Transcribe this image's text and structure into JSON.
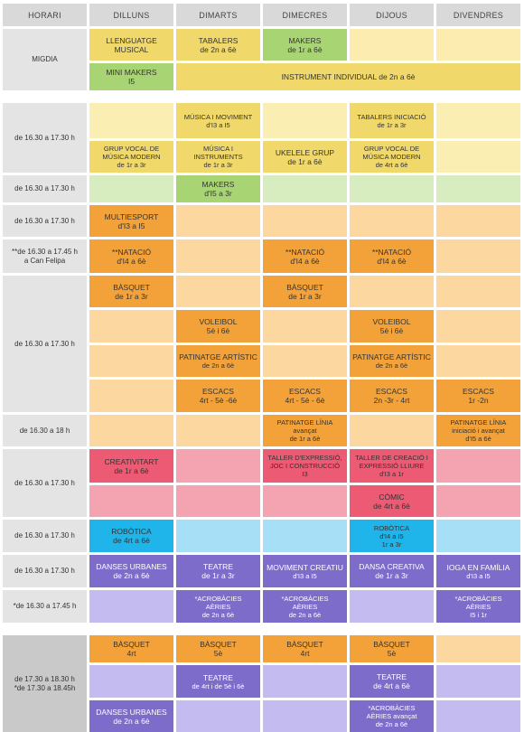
{
  "colors": {
    "header_bg": "#d9d9d9",
    "time_bg": "#e4e4e4",
    "midday_pale": "#fdecb0",
    "yellow": "#f0d96a",
    "yellow_pale": "#fbeeb3",
    "green": "#a9d474",
    "green_pale": "#d7ecbf",
    "orange": "#f3a23a",
    "orange_pale": "#fcd7a0",
    "red": "#ec5a73",
    "pink_pale": "#f4a3b1",
    "blue": "#1fb4ea",
    "blue_pale": "#a7dff7",
    "purple": "#7d6cc9",
    "lavender": "#c4bbf0"
  },
  "headers": [
    "HORARI",
    "DILLUNS",
    "DIMARTS",
    "DIMECRES",
    "DIJOUS",
    "DIVENDRES"
  ],
  "times": {
    "migdia": "MIGDIA",
    "t1a": "de 16.30 a 17.30 h",
    "t1b": "de 16.30 a 17.30 h",
    "t1c": "de 16.30 a 17.30 h",
    "t1d": [
      "**de 16.30 a 17.45 h",
      "a Can Felipa"
    ],
    "t1e": "de 16.30 a 17.30 h",
    "t1f": "de 16.30 a 18 h",
    "t2": "de 16.30 a 17.30 h",
    "t3": "de 16.30 a 17.30 h",
    "t4": "de 16.30 a 17.30 h",
    "t5": "*de 16.30 a 17.45 h",
    "t6": [
      "de 17.30 a 18.30 h",
      "*de 17.30 a 18.45h"
    ]
  },
  "midday": {
    "llenguatge": {
      "title": [
        "LLENGUATGE",
        "MUSICAL"
      ]
    },
    "tabalers": {
      "title": [
        "TABALERS",
        "de 2n a 6è"
      ]
    },
    "makers": {
      "title": [
        "MAKERS",
        "de 1r a 6è"
      ]
    },
    "minimakers": {
      "title": [
        "MINI MAKERS",
        "I5"
      ]
    },
    "instrument": {
      "title": "INSTRUMENT INDIVIDUAL de 2n a 6è"
    }
  },
  "block1": {
    "musica_moviment": {
      "title": "MÚSICA I MOVIMENT",
      "sub": "d'I3 a I5"
    },
    "tabalers_iniciacio": {
      "title": "TABALERS INICIACIÓ",
      "sub": "de 1r a 3r"
    },
    "grup_vocal_1": {
      "title": [
        "GRUP VOCAL DE",
        "MÚSICA MODERN"
      ],
      "sub": "de 1r a 3r"
    },
    "musica_instruments": {
      "title": [
        "MÚSICA I",
        "INSTRUMENTS"
      ],
      "sub": "de 1r a 3r"
    },
    "ukelele": {
      "title": "UKELELE GRUP",
      "sub": "de 1r a 6è"
    },
    "grup_vocal_2": {
      "title": [
        "GRUP VOCAL DE",
        "MÚSICA MODERN"
      ],
      "sub": "de 4rt a 6è"
    },
    "makers_i5": {
      "title": "MAKERS",
      "sub": "d'I5 a 3r"
    },
    "multiesport": {
      "title": "MULTIESPORT",
      "sub": "d'I3 a I5"
    },
    "natacio_1": {
      "title": "**NATACIÓ",
      "sub": "d'I4 a 6è"
    },
    "natacio_2": {
      "title": "**NATACIÓ",
      "sub": "d'I4 a 6è"
    },
    "natacio_3": {
      "title": "**NATACIÓ",
      "sub": "d'I4 a 6è"
    },
    "basquet_1": {
      "title": "BÀSQUET",
      "sub": "de 1r a 3r"
    },
    "basquet_2": {
      "title": "BÀSQUET",
      "sub": "de 1r a 3r"
    },
    "voleibol_1": {
      "title": "VOLEIBOL",
      "sub": "5è i 6è"
    },
    "voleibol_2": {
      "title": "VOLEIBOL",
      "sub": "5è i 6è"
    },
    "patinatge_1": {
      "title": "PATINATGE ARTÍSTIC",
      "sub": "de 2n a 6è"
    },
    "patinatge_2": {
      "title": "PATINATGE ARTÍSTIC",
      "sub": "de 2n a 6è"
    },
    "escacs_1": {
      "title": "ESCACS",
      "sub": "4rt - 5è -6è"
    },
    "escacs_2": {
      "title": "ESCACS",
      "sub": "4rt - 5è - 6è"
    },
    "escacs_3": {
      "title": "ESCACS",
      "sub": "2n -3r - 4rt"
    },
    "escacs_4": {
      "title": "ESCACS",
      "sub": "1r -2n"
    },
    "linia_1": {
      "title": "PATINATGE LÍNIA",
      "sub": [
        "avançat",
        "de 1r a 6è"
      ]
    },
    "linia_2": {
      "title": "PATINATGE LÍNIA",
      "sub": [
        "iniciació i avançat",
        "d'I5 a 6è"
      ]
    }
  },
  "block2": {
    "creativitart": {
      "title": "CREATIVITART",
      "sub": "de 1r a 6è"
    },
    "taller_expressio": {
      "title": [
        "TALLER D'EXPRESSIÓ,",
        "JOC I CONSTRUCCIÓ"
      ],
      "sub": "I3"
    },
    "taller_creacio": {
      "title": [
        "TALLER DE CREACIÓ I",
        "EXPRESSIÓ LLIURE"
      ],
      "sub": "d'I3 a 1r"
    },
    "comic": {
      "title": "CÒMIC",
      "sub": "de 4rt a 6è"
    }
  },
  "block3": {
    "robotica_1": {
      "title": "ROBÒTICA",
      "sub": "de 4rt a 6è"
    },
    "robotica_2": {
      "title": "ROBÒTICA",
      "sub": [
        "d'I4 a I5",
        "1r a 3r"
      ]
    }
  },
  "block4": {
    "danses_1": {
      "title": "DANSES URBANES",
      "sub": "de 2n a 6è"
    },
    "teatre_1": {
      "title": "TEATRE",
      "sub": "de 1r a 3r"
    },
    "moviment_creatiu": {
      "title": "MOVIMENT CREATIU",
      "sub": "d'I3 a I5"
    },
    "dansa_creativa": {
      "title": "DANSA CREATIVA",
      "sub": "de 1r a 3r"
    },
    "ioga": {
      "title": "IOGA EN FAMÍLIA",
      "sub": "d'I3 a I5"
    },
    "acro_1": {
      "title": "*ACROBÀCIES",
      "sub": [
        "AÈRIES",
        "de 2n a 6è"
      ]
    },
    "acro_2": {
      "title": "*ACROBÀCIES",
      "sub": [
        "AÈRIES",
        "de 2n a 6è"
      ]
    },
    "acro_3": {
      "title": "*ACROBÀCIES",
      "sub": [
        "AÈRIES",
        "I5 i 1r"
      ]
    }
  },
  "block5": {
    "basquet_4rt_1": {
      "title": "BÀSQUET",
      "sub": "4rt"
    },
    "basquet_5e_1": {
      "title": "BÀSQUET",
      "sub": "5è"
    },
    "basquet_4rt_2": {
      "title": "BÀSQUET",
      "sub": "4rt"
    },
    "basquet_5e_2": {
      "title": "BÀSQUET",
      "sub": "5è"
    },
    "teatre_2": {
      "title": "TEATRE",
      "sub": "de 4rt i de 5è i 6è"
    },
    "teatre_3": {
      "title": "TEATRE",
      "sub": "de 4rt a 6è"
    },
    "danses_2": {
      "title": "DANSES URBANES",
      "sub": "de 2n a 6è"
    },
    "acro_4": {
      "title": "*ACROBÀCIES",
      "sub": [
        "AÈRIES avançat",
        "de 2n a 6è"
      ]
    }
  }
}
